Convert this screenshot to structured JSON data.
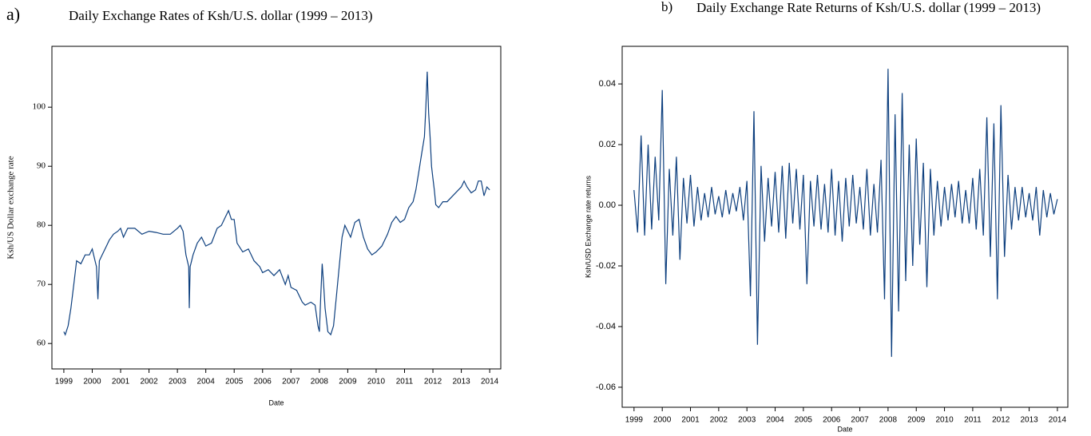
{
  "chart_data": [
    {
      "type": "line",
      "panel": "a)",
      "title": "Daily Exchange Rates of Ksh/U.S. dollar (1999 – 2013)",
      "x_label": "Date",
      "y_label": "Ksh/US Dollar exchange rate",
      "color": "#0d3f7e",
      "xlim": [
        1998.58,
        2014.39
      ],
      "xticks": [
        1999,
        2000,
        2001,
        2002,
        2003,
        2004,
        2005,
        2006,
        2007,
        2008,
        2009,
        2010,
        2011,
        2012,
        2013,
        2014
      ],
      "ylim": [
        55.7,
        110.3
      ],
      "yticks": [
        60,
        70,
        80,
        90,
        100
      ],
      "x": [
        1999.0,
        1999.05,
        1999.15,
        1999.25,
        1999.35,
        1999.45,
        1999.6,
        1999.75,
        1999.9,
        2000.0,
        2000.1,
        2000.15,
        2000.2,
        2000.25,
        2000.35,
        2000.5,
        2000.6,
        2000.75,
        2000.9,
        2001.0,
        2001.1,
        2001.25,
        2001.5,
        2001.75,
        2002.0,
        2002.25,
        2002.5,
        2002.75,
        2003.0,
        2003.1,
        2003.2,
        2003.3,
        2003.4,
        2003.42,
        2003.45,
        2003.55,
        2003.7,
        2003.85,
        2004.0,
        2004.2,
        2004.4,
        2004.55,
        2004.7,
        2004.8,
        2004.9,
        2005.0,
        2005.1,
        2005.3,
        2005.5,
        2005.7,
        2005.9,
        2006.0,
        2006.2,
        2006.4,
        2006.6,
        2006.8,
        2006.9,
        2007.0,
        2007.2,
        2007.4,
        2007.5,
        2007.7,
        2007.85,
        2007.95,
        2008.0,
        2008.05,
        2008.1,
        2008.15,
        2008.2,
        2008.3,
        2008.4,
        2008.5,
        2008.6,
        2008.7,
        2008.8,
        2008.9,
        2009.0,
        2009.1,
        2009.25,
        2009.4,
        2009.55,
        2009.7,
        2009.85,
        2010.0,
        2010.2,
        2010.4,
        2010.55,
        2010.7,
        2010.85,
        2011.0,
        2011.15,
        2011.3,
        2011.4,
        2011.5,
        2011.6,
        2011.7,
        2011.75,
        2011.8,
        2011.85,
        2011.9,
        2011.95,
        2012.0,
        2012.05,
        2012.1,
        2012.2,
        2012.35,
        2012.5,
        2012.7,
        2012.9,
        2013.0,
        2013.1,
        2013.2,
        2013.35,
        2013.5,
        2013.6,
        2013.7,
        2013.8,
        2013.9,
        2014.0
      ],
      "values": [
        62,
        61.5,
        63,
        66,
        70,
        74,
        73.5,
        75,
        75,
        76,
        74,
        73,
        67.5,
        74,
        75,
        76.5,
        77.5,
        78.5,
        79,
        79.5,
        78,
        79.5,
        79.5,
        78.5,
        79,
        78.8,
        78.5,
        78.5,
        79.5,
        80,
        79,
        75,
        73,
        66,
        73,
        75,
        77,
        78,
        76.5,
        77,
        79.5,
        80,
        81.5,
        82.5,
        81,
        81,
        77,
        75.5,
        76,
        74,
        73,
        72,
        72.5,
        71.5,
        72.5,
        70,
        71.5,
        69.5,
        69,
        67,
        66.5,
        67,
        66.5,
        63,
        62,
        68,
        73.5,
        70,
        66,
        62,
        61.5,
        63,
        68,
        73,
        78,
        80,
        79,
        78,
        80.5,
        81,
        78,
        76,
        75,
        75.5,
        76.5,
        78.5,
        80.5,
        81.5,
        80.5,
        81,
        83,
        84,
        86,
        89,
        92,
        95,
        100,
        106,
        99,
        95,
        90,
        88,
        86,
        83.5,
        83,
        84,
        84,
        85,
        86,
        86.5,
        87.5,
        86.5,
        85.5,
        86,
        87.5,
        87.5,
        85,
        86.5,
        86
      ]
    },
    {
      "type": "line",
      "panel": "b)",
      "title": "Daily Exchange Rate Returns of Ksh/U.S. dollar (1999 – 2013)",
      "x_label": "Date",
      "y_label": "Ksh/USD Exchange rate returns",
      "color": "#0d3f7e",
      "xlim": [
        1998.58,
        2014.37
      ],
      "xticks": [
        1999,
        2000,
        2001,
        2002,
        2003,
        2004,
        2005,
        2006,
        2007,
        2008,
        2009,
        2010,
        2011,
        2012,
        2013,
        2014
      ],
      "ylim": [
        -0.0666,
        0.0524
      ],
      "yticks": [
        -0.06,
        -0.04,
        -0.02,
        {
          "value": 0,
          "label": "0.00"
        },
        0.02,
        0.04
      ],
      "x": [
        1999,
        1999.125,
        1999.25,
        1999.375,
        1999.5,
        1999.625,
        1999.75,
        1999.875,
        2000,
        2000.125,
        2000.25,
        2000.375,
        2000.5,
        2000.625,
        2000.75,
        2000.875,
        2001,
        2001.125,
        2001.25,
        2001.375,
        2001.5,
        2001.625,
        2001.75,
        2001.875,
        2002,
        2002.125,
        2002.25,
        2002.375,
        2002.5,
        2002.625,
        2002.75,
        2002.875,
        2003,
        2003.125,
        2003.25,
        2003.375,
        2003.5,
        2003.625,
        2003.75,
        2003.875,
        2004,
        2004.125,
        2004.25,
        2004.375,
        2004.5,
        2004.625,
        2004.75,
        2004.875,
        2005,
        2005.125,
        2005.25,
        2005.375,
        2005.5,
        2005.625,
        2005.75,
        2005.875,
        2006,
        2006.125,
        2006.25,
        2006.375,
        2006.5,
        2006.625,
        2006.75,
        2006.875,
        2007,
        2007.125,
        2007.25,
        2007.375,
        2007.5,
        2007.625,
        2007.75,
        2007.875,
        2008,
        2008.125,
        2008.25,
        2008.375,
        2008.5,
        2008.625,
        2008.75,
        2008.875,
        2009,
        2009.125,
        2009.25,
        2009.375,
        2009.5,
        2009.625,
        2009.75,
        2009.875,
        2010,
        2010.125,
        2010.25,
        2010.375,
        2010.5,
        2010.625,
        2010.75,
        2010.875,
        2011,
        2011.125,
        2011.25,
        2011.375,
        2011.5,
        2011.625,
        2011.75,
        2011.875,
        2012,
        2012.125,
        2012.25,
        2012.375,
        2012.5,
        2012.625,
        2012.75,
        2012.875,
        2013,
        2013.125,
        2013.25,
        2013.375,
        2013.5,
        2013.625,
        2013.75,
        2013.875,
        2014
      ],
      "values": [
        0.005,
        -0.009,
        0.023,
        -0.01,
        0.02,
        -0.008,
        0.016,
        -0.005,
        0.038,
        -0.026,
        0.012,
        -0.01,
        0.016,
        -0.018,
        0.009,
        -0.006,
        0.01,
        -0.007,
        0.006,
        -0.005,
        0.004,
        -0.004,
        0.006,
        -0.003,
        0.003,
        -0.004,
        0.005,
        -0.003,
        0.004,
        -0.002,
        0.006,
        -0.005,
        0.008,
        -0.03,
        0.031,
        -0.046,
        0.013,
        -0.012,
        0.009,
        -0.007,
        0.011,
        -0.009,
        0.013,
        -0.011,
        0.014,
        -0.006,
        0.012,
        -0.008,
        0.01,
        -0.026,
        0.008,
        -0.007,
        0.01,
        -0.008,
        0.007,
        -0.009,
        0.012,
        -0.01,
        0.008,
        -0.012,
        0.009,
        -0.007,
        0.01,
        -0.006,
        0.006,
        -0.008,
        0.012,
        -0.01,
        0.007,
        -0.009,
        0.015,
        -0.031,
        0.045,
        -0.05,
        0.03,
        -0.035,
        0.037,
        -0.025,
        0.02,
        -0.02,
        0.022,
        -0.013,
        0.014,
        -0.027,
        0.012,
        -0.01,
        0.008,
        -0.007,
        0.006,
        -0.005,
        0.007,
        -0.004,
        0.008,
        -0.006,
        0.005,
        -0.006,
        0.009,
        -0.008,
        0.012,
        -0.01,
        0.029,
        -0.017,
        0.027,
        -0.031,
        0.033,
        -0.017,
        0.01,
        -0.008,
        0.006,
        -0.005,
        0.006,
        -0.004,
        0.004,
        -0.005,
        0.006,
        -0.01,
        0.005,
        -0.004,
        0.004,
        -0.003,
        0.002
      ]
    }
  ]
}
